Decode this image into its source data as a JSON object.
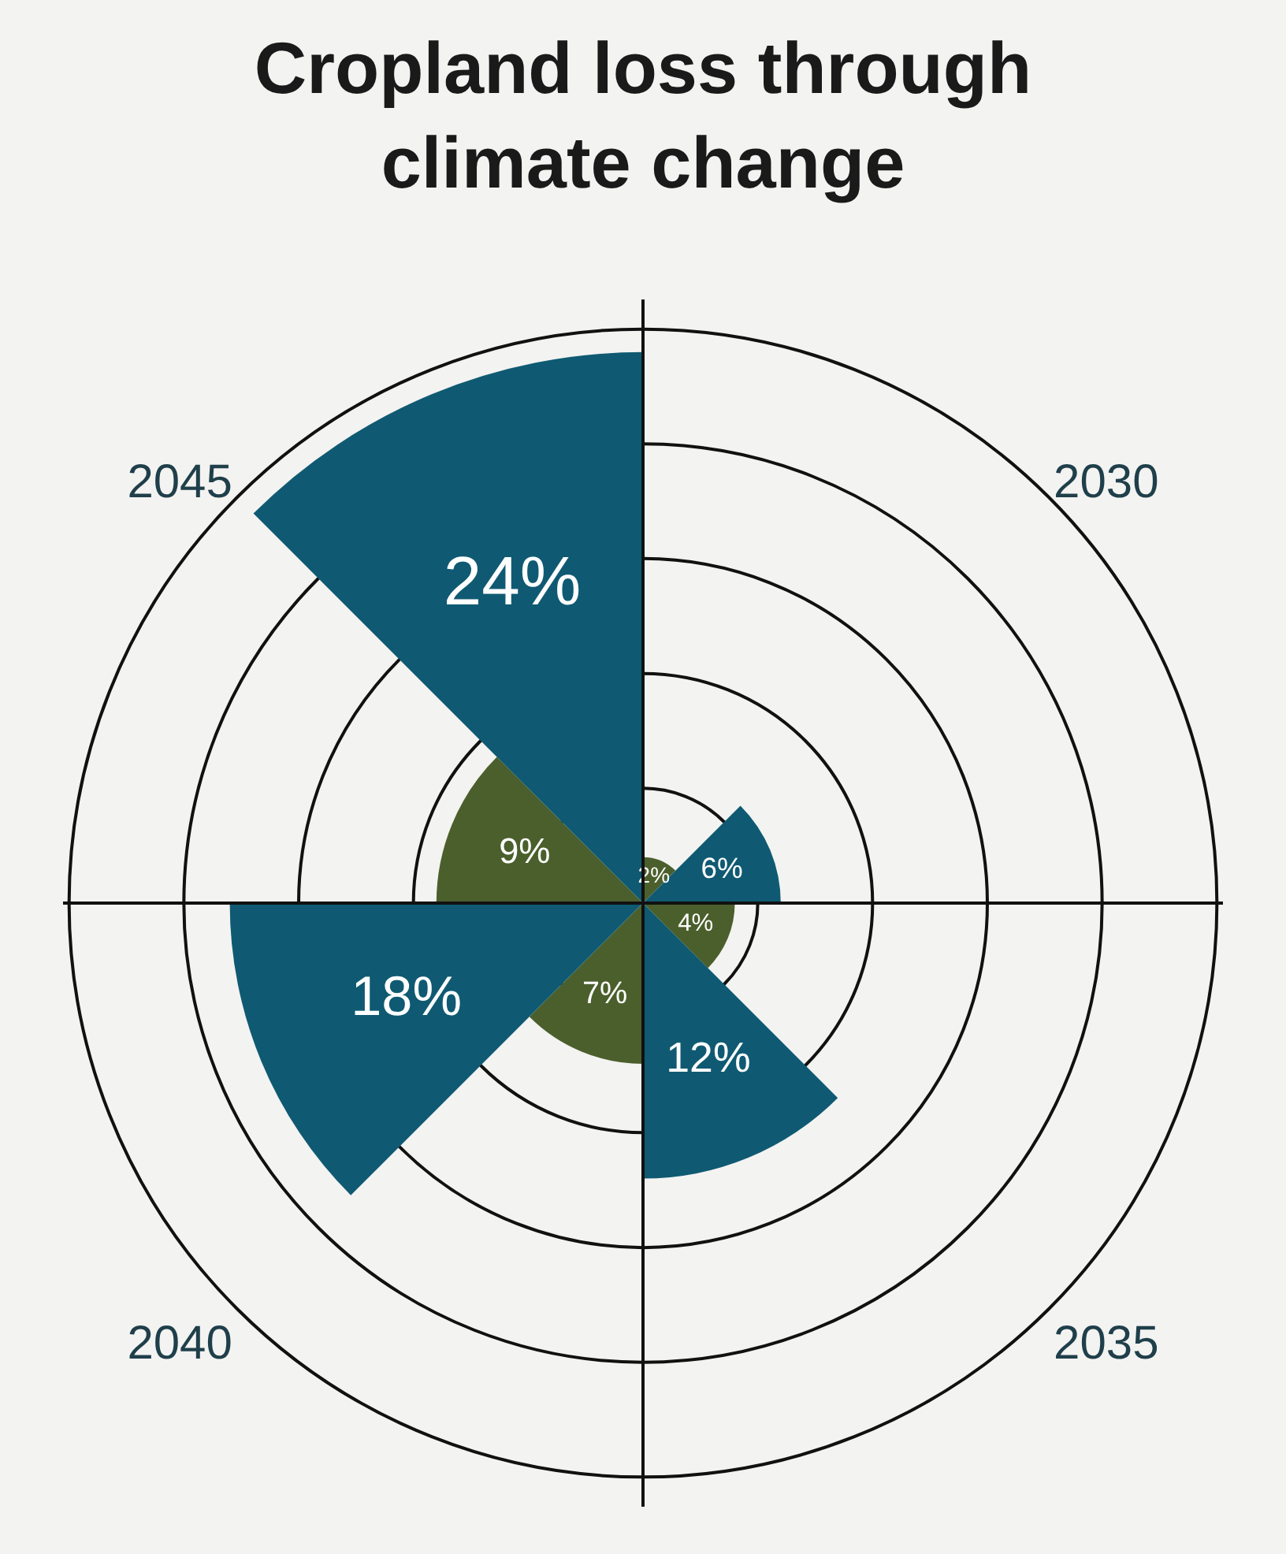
{
  "chart_data": {
    "type": "other",
    "title": "Cropland loss through\nclimate change",
    "categories": [
      "2030",
      "2035",
      "2040",
      "2045"
    ],
    "series": [
      {
        "color": "#4b5f2c",
        "values": [
          2,
          4,
          7,
          9
        ],
        "value_labels": [
          "2%",
          "4%",
          "7%",
          "9%"
        ]
      },
      {
        "color": "#0f5a72",
        "values": [
          6,
          12,
          18,
          24
        ],
        "value_labels": [
          "6%",
          "12%",
          "18%",
          "24%"
        ]
      }
    ]
  }
}
